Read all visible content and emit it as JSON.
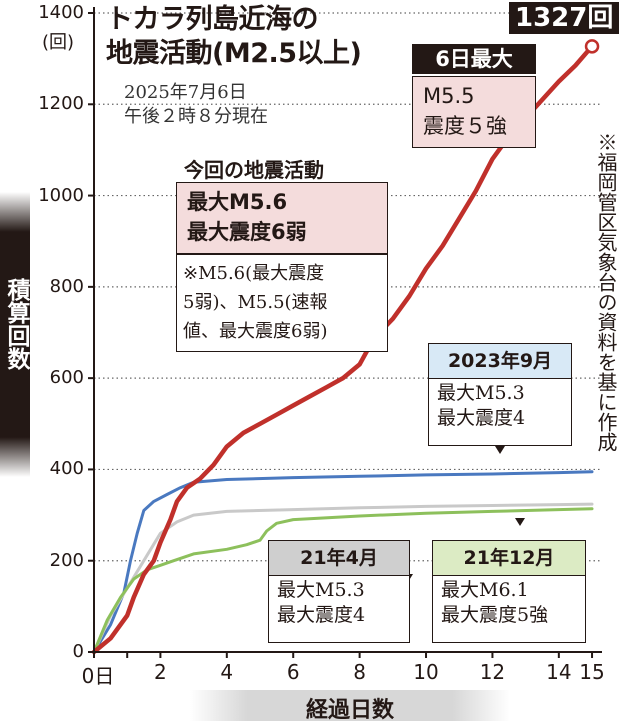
{
  "title": {
    "line1": "トカラ列島近海の",
    "line2": "地震活動(M2.5以上)"
  },
  "subtitle": {
    "line1": "2025年7月6日",
    "line2": "午後２時８分現在"
  },
  "latest": {
    "count_label": "1327回",
    "head": "6日最大",
    "line1": "M5.5",
    "line2": "震度５強"
  },
  "current_activity": {
    "heading": "今回の地震活動",
    "line1": "最大M5.6",
    "line2": "最大震度6弱",
    "note_line1": "※M5.6(最大震度",
    "note_line2": "5弱)、M5.5(速報",
    "note_line3": "値、最大震度6弱)"
  },
  "annotations": {
    "sep2023": {
      "head": "2023年9月",
      "line1": "最大M5.3",
      "line2": "最大震度4"
    },
    "apr2021": {
      "head": "21年4月",
      "line1": "最大M5.3",
      "line2": "最大震度4"
    },
    "dec2021": {
      "head": "21年12月",
      "line1": "最大M6.1",
      "line2": "最大震度5強"
    }
  },
  "source_note": "※福岡管区気象台の資料を基に作成",
  "colors": {
    "current": "#c0302b",
    "sep2023": "#4a79c0",
    "dec2021": "#8dc05c",
    "apr2021": "#c9c9c9",
    "axis": "#231815",
    "pink_box": "#f4dcdc",
    "blue_box": "#d8e9f6",
    "green_box": "#dcebc4",
    "gray_box": "#cfcfcf"
  },
  "chart_data": {
    "type": "line",
    "xlabel": "経過日数",
    "ylabel": "積算回数",
    "y_unit": "(回)",
    "xlim": [
      0,
      15.3
    ],
    "ylim": [
      0,
      1400
    ],
    "x_ticks": [
      0,
      1,
      2,
      4,
      6,
      8,
      10,
      12,
      14,
      15
    ],
    "x_tick_labels": [
      "0日",
      "",
      "2",
      "4",
      "6",
      "8",
      "10",
      "12",
      "14",
      "15"
    ],
    "y_ticks": [
      0,
      200,
      400,
      600,
      800,
      1000,
      1200,
      1400
    ],
    "y_tick_labels": [
      "0",
      "200",
      "400",
      "600",
      "800",
      "1000",
      "1200",
      "1400"
    ],
    "series": [
      {
        "name": "2023年9月",
        "color": "#4a79c0",
        "x": [
          0,
          0.5,
          0.9,
          1.1,
          1.3,
          1.5,
          1.8,
          2.2,
          2.6,
          3.0,
          4,
          6,
          8,
          10,
          12,
          14,
          15
        ],
        "y": [
          0,
          60,
          130,
          200,
          260,
          310,
          330,
          345,
          360,
          372,
          378,
          382,
          385,
          388,
          390,
          393,
          395
        ]
      },
      {
        "name": "21年4月",
        "color": "#c9c9c9",
        "x": [
          0,
          0.5,
          1.0,
          1.5,
          2.0,
          2.5,
          3.0,
          4,
          6,
          8,
          10,
          12,
          14,
          15
        ],
        "y": [
          0,
          80,
          140,
          200,
          260,
          285,
          300,
          308,
          312,
          316,
          319,
          321,
          323,
          324
        ]
      },
      {
        "name": "21年12月",
        "color": "#8dc05c",
        "x": [
          0,
          0.4,
          0.8,
          1.2,
          1.6,
          2.0,
          2.4,
          3.0,
          4.0,
          4.6,
          5.0,
          5.2,
          5.5,
          6,
          8,
          10,
          12,
          14,
          15
        ],
        "y": [
          0,
          70,
          120,
          160,
          180,
          190,
          200,
          215,
          225,
          235,
          245,
          265,
          282,
          290,
          298,
          304,
          308,
          312,
          314
        ]
      },
      {
        "name": "今回の地震活動",
        "color": "#c0302b",
        "x": [
          0,
          0.5,
          1.0,
          1.2,
          1.5,
          1.8,
          2.0,
          2.3,
          2.5,
          2.8,
          3.2,
          3.6,
          4.0,
          4.5,
          5.0,
          5.5,
          6.0,
          6.5,
          7.0,
          7.5,
          8.0,
          8.3,
          8.6,
          9.0,
          9.5,
          10.0,
          10.5,
          11.0,
          11.5,
          12.0,
          12.5,
          13.0,
          13.5,
          14.0,
          14.5,
          15.0
        ],
        "y": [
          0,
          30,
          80,
          120,
          170,
          200,
          240,
          290,
          330,
          360,
          380,
          410,
          450,
          480,
          500,
          520,
          540,
          560,
          580,
          600,
          630,
          670,
          700,
          730,
          780,
          840,
          890,
          950,
          1010,
          1080,
          1130,
          1170,
          1210,
          1250,
          1285,
          1327
        ]
      }
    ]
  }
}
